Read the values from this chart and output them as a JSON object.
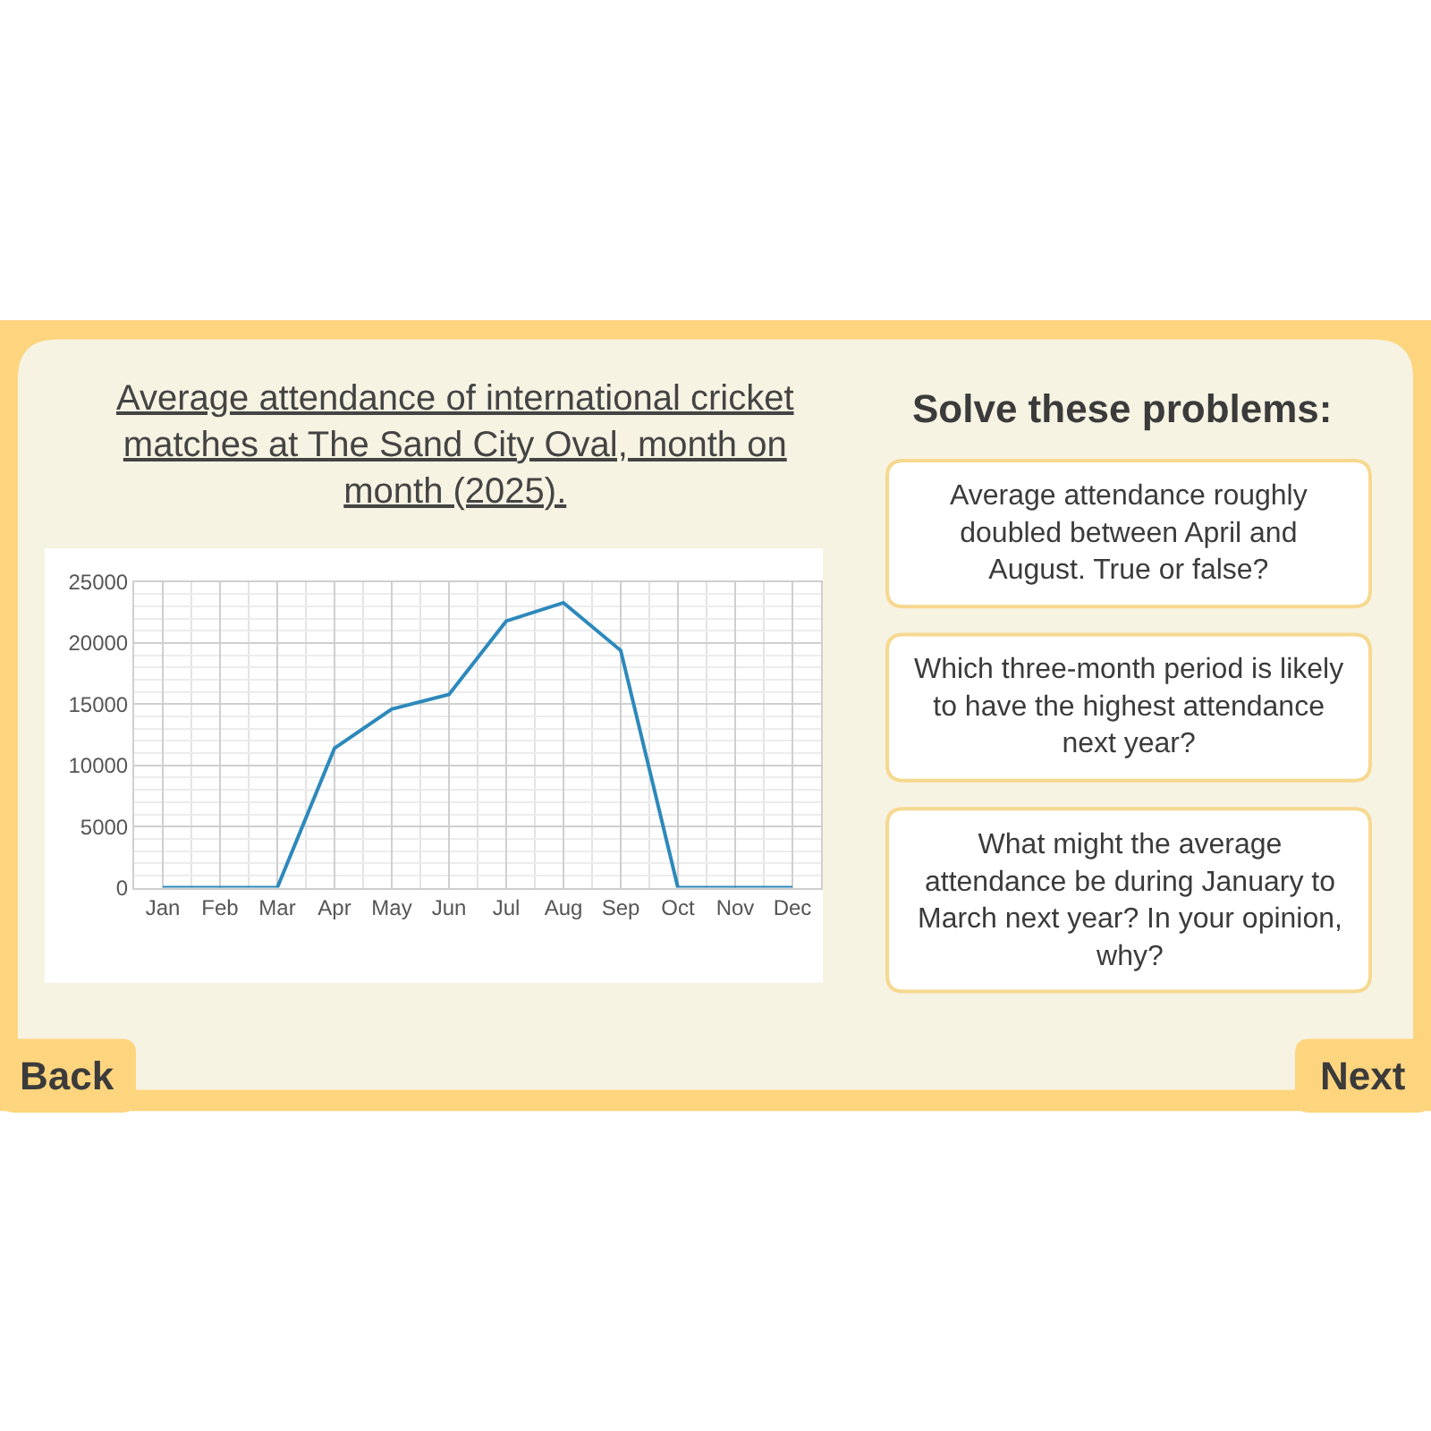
{
  "chart_data": [
    {
      "type": "line",
      "title": "Average attendance of international cricket matches at The Sand City Oval, month on month (2025).",
      "categories": [
        "Jan",
        "Feb",
        "Mar",
        "Apr",
        "May",
        "Jun",
        "Jul",
        "Aug",
        "Sep",
        "Oct",
        "Nov",
        "Dec"
      ],
      "series": [
        {
          "color": "#2d89bb",
          "values": [
            0,
            0,
            0,
            11400,
            14600,
            15800,
            21800,
            23300,
            19400,
            0,
            0,
            0
          ]
        }
      ],
      "ylim": [
        0,
        25000
      ],
      "yticks": [
        0,
        5000,
        10000,
        15000,
        20000,
        25000
      ],
      "grid": true
    },
    {
      "type": "other",
      "title": "Solve these problems:",
      "annotations": [
        "Average attendance roughly doubled between April and August. True or false?",
        "Which three-month period is likely to have the highest attendance next year?",
        "What might the average attendance be during January to March next year? In your opinion, why?",
        "Back",
        "Next"
      ]
    }
  ]
}
